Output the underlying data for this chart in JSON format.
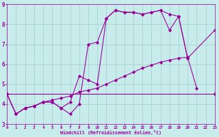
{
  "xlabel": "Windchill (Refroidissement éolien,°C)",
  "xlim": [
    0,
    23
  ],
  "ylim": [
    3,
    9
  ],
  "yticks": [
    3,
    4,
    5,
    6,
    7,
    8,
    9
  ],
  "xticks": [
    0,
    1,
    2,
    3,
    4,
    5,
    6,
    7,
    8,
    9,
    10,
    11,
    12,
    13,
    14,
    15,
    16,
    17,
    18,
    19,
    20,
    21,
    22,
    23
  ],
  "bg_color": "#c8ecec",
  "line_color": "#990099",
  "grid_color": "#a0cccc",
  "line1_x": [
    0,
    1,
    2,
    3,
    4,
    5,
    6,
    7,
    8,
    9,
    10,
    11,
    12,
    13,
    14,
    15,
    16,
    17,
    18,
    19,
    20
  ],
  "line1_y": [
    4.5,
    3.5,
    3.8,
    3.9,
    4.1,
    4.1,
    3.8,
    4.1,
    5.4,
    5.2,
    5.0,
    8.3,
    8.7,
    8.6,
    8.6,
    8.5,
    8.6,
    8.7,
    8.5,
    8.4,
    6.3
  ],
  "line2_x": [
    0,
    1,
    2,
    3,
    4,
    5,
    6,
    7,
    8,
    9,
    10,
    11,
    12,
    13,
    14,
    15,
    16,
    17,
    18,
    19,
    20,
    23
  ],
  "line2_y": [
    4.5,
    3.5,
    3.8,
    3.9,
    4.1,
    4.1,
    3.8,
    3.5,
    4.0,
    7.0,
    7.1,
    8.3,
    8.7,
    8.6,
    8.6,
    8.5,
    8.6,
    8.7,
    7.7,
    8.4,
    6.3,
    7.7
  ],
  "line3_x": [
    0,
    23
  ],
  "line3_y": [
    4.5,
    4.5
  ],
  "line4_x": [
    0,
    1,
    2,
    3,
    4,
    5,
    6,
    7,
    8,
    9,
    10,
    11,
    12,
    13,
    14,
    15,
    16,
    17,
    18,
    19,
    20,
    21,
    22,
    23
  ],
  "line4_y": [
    4.5,
    3.5,
    3.8,
    3.9,
    4.1,
    4.2,
    4.3,
    4.4,
    4.6,
    4.7,
    4.8,
    5.0,
    5.2,
    5.4,
    5.6,
    5.8,
    5.95,
    6.1,
    6.2,
    6.3,
    6.35,
    4.8,
    null,
    4.5
  ]
}
